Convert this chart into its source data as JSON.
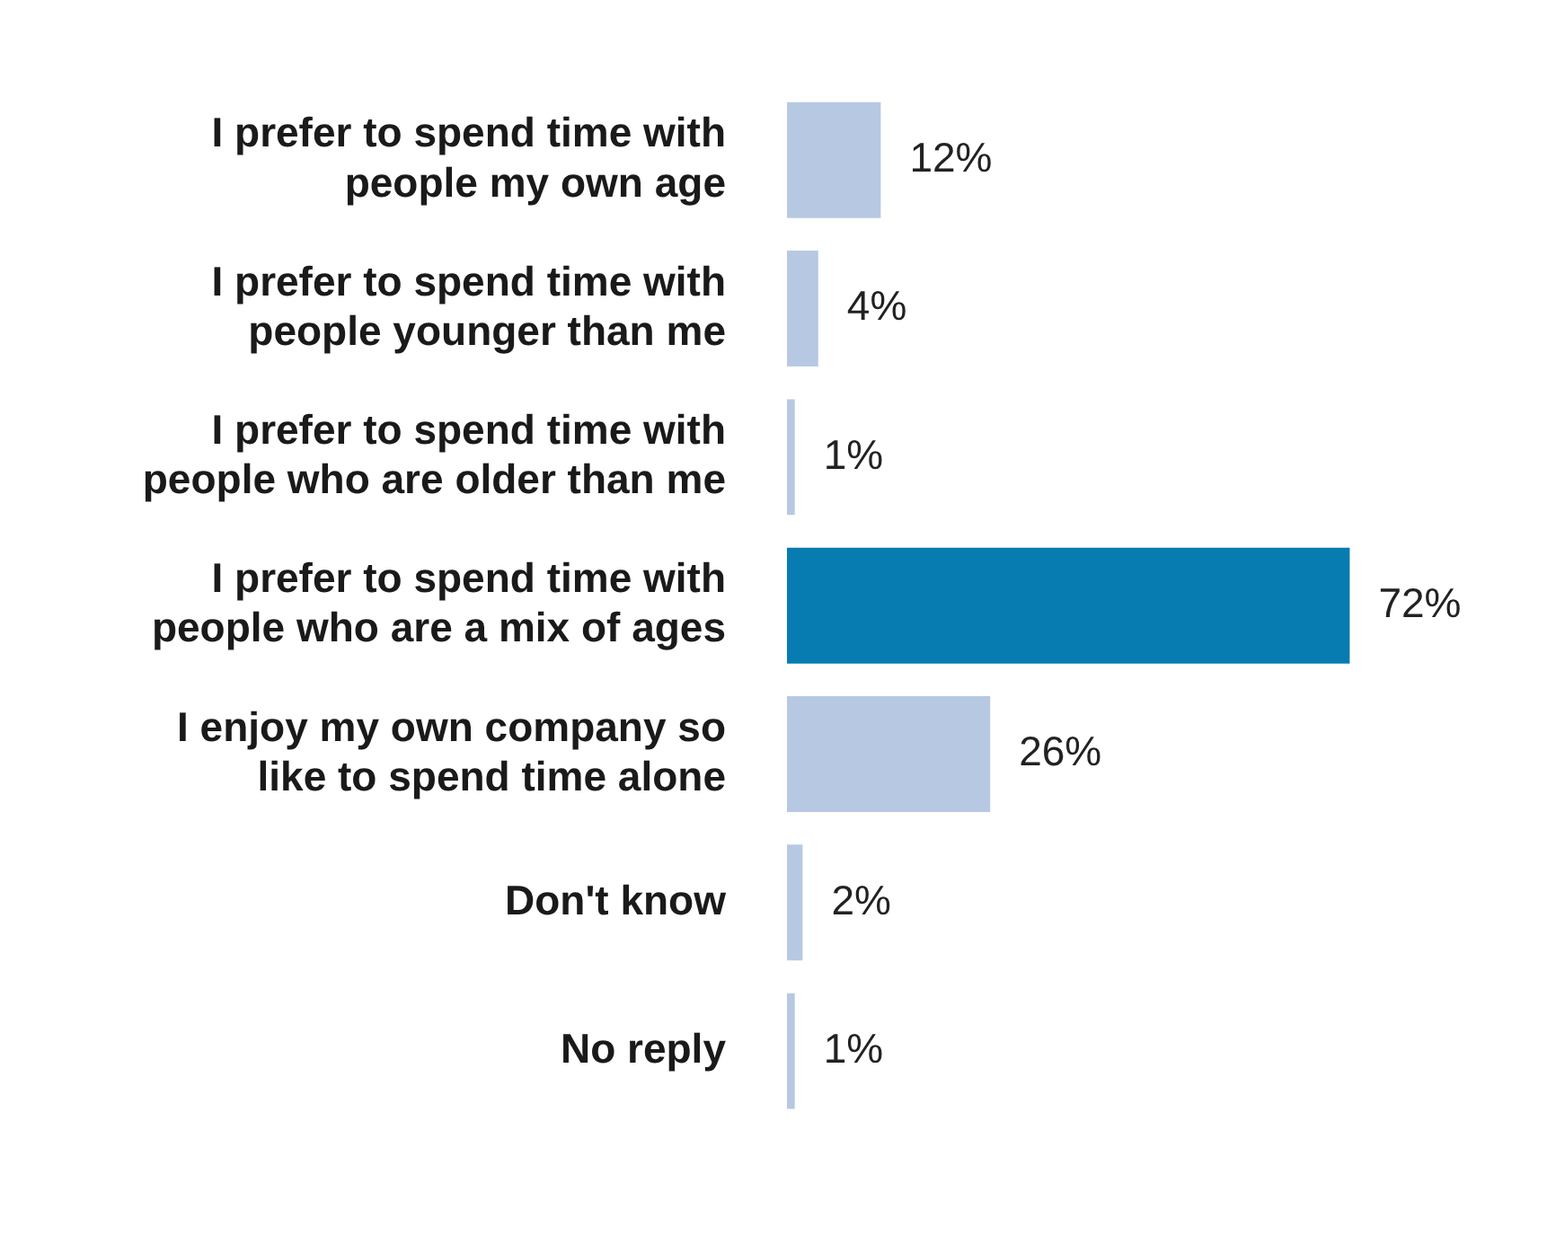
{
  "chart_data": {
    "type": "bar",
    "orientation": "horizontal",
    "categories": [
      "I prefer to spend time with people my own age",
      "I prefer to spend time with people younger than me",
      "I prefer to spend time with people who are older than me",
      "I prefer to spend time with people who are a mix of ages",
      "I enjoy my own company so like to spend time alone",
      "Don't know",
      "No reply"
    ],
    "values": [
      12,
      4,
      1,
      72,
      26,
      2,
      1
    ],
    "value_labels": [
      "12%",
      "4%",
      "1%",
      "72%",
      "26%",
      "2%",
      "1%"
    ],
    "colors": [
      "#b7c9e2",
      "#b7c9e2",
      "#b7c9e2",
      "#077cb0",
      "#b7c9e2",
      "#b7c9e2",
      "#b7c9e2"
    ],
    "legend": false
  }
}
